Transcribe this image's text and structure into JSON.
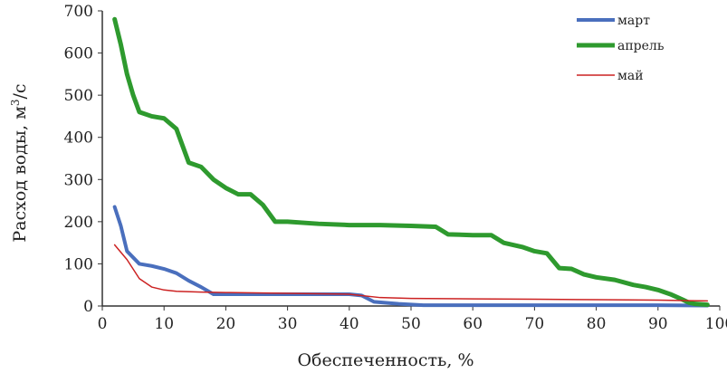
{
  "chart_data": {
    "type": "line",
    "title": "",
    "xlabel": "Обеспеченность, %",
    "ylabel": "Расход воды, м³/с",
    "ylabel_main": "Расход воды, м",
    "ylabel_sup": "3",
    "ylabel_tail": "/с",
    "xlim": [
      0,
      100
    ],
    "ylim": [
      0,
      700
    ],
    "x_ticks": [
      "0",
      "10",
      "20",
      "30",
      "40",
      "50",
      "60",
      "70",
      "80",
      "90",
      "100"
    ],
    "y_ticks": [
      "0",
      "100",
      "200",
      "300",
      "400",
      "500",
      "600",
      "700"
    ],
    "grid": false,
    "legend_position": "top-right",
    "series": [
      {
        "name": "март",
        "color": "#4a6fbd",
        "x": [
          2,
          3,
          4,
          5,
          6,
          8,
          10,
          12,
          14,
          16,
          18,
          25,
          30,
          35,
          40,
          42,
          44,
          48,
          52,
          60,
          70,
          80,
          90,
          98
        ],
        "y": [
          235,
          190,
          130,
          115,
          100,
          95,
          88,
          78,
          60,
          45,
          28,
          28,
          28,
          28,
          28,
          25,
          10,
          5,
          2,
          2,
          2,
          2,
          2,
          1
        ]
      },
      {
        "name": "апрель",
        "color": "#2e9a2e",
        "x": [
          2,
          3,
          4,
          5,
          6,
          8,
          10,
          12,
          13,
          14,
          16,
          18,
          20,
          22,
          24,
          26,
          28,
          30,
          35,
          40,
          45,
          50,
          54,
          56,
          60,
          63,
          65,
          68,
          70,
          72,
          74,
          76,
          78,
          80,
          83,
          86,
          88,
          90,
          92,
          94,
          95,
          96,
          98
        ],
        "y": [
          680,
          620,
          550,
          500,
          460,
          450,
          445,
          420,
          380,
          340,
          330,
          300,
          280,
          265,
          265,
          240,
          200,
          200,
          195,
          192,
          192,
          190,
          188,
          170,
          168,
          168,
          150,
          140,
          130,
          125,
          90,
          88,
          75,
          68,
          62,
          50,
          45,
          38,
          28,
          15,
          8,
          5,
          3
        ]
      },
      {
        "name": "май",
        "color": "#cc2222",
        "x": [
          2,
          4,
          6,
          8,
          10,
          12,
          16,
          20,
          30,
          40,
          45,
          50,
          60,
          70,
          80,
          90,
          98
        ],
        "y": [
          145,
          110,
          65,
          45,
          38,
          35,
          33,
          32,
          30,
          28,
          20,
          18,
          17,
          16,
          15,
          14,
          12
        ]
      }
    ]
  }
}
